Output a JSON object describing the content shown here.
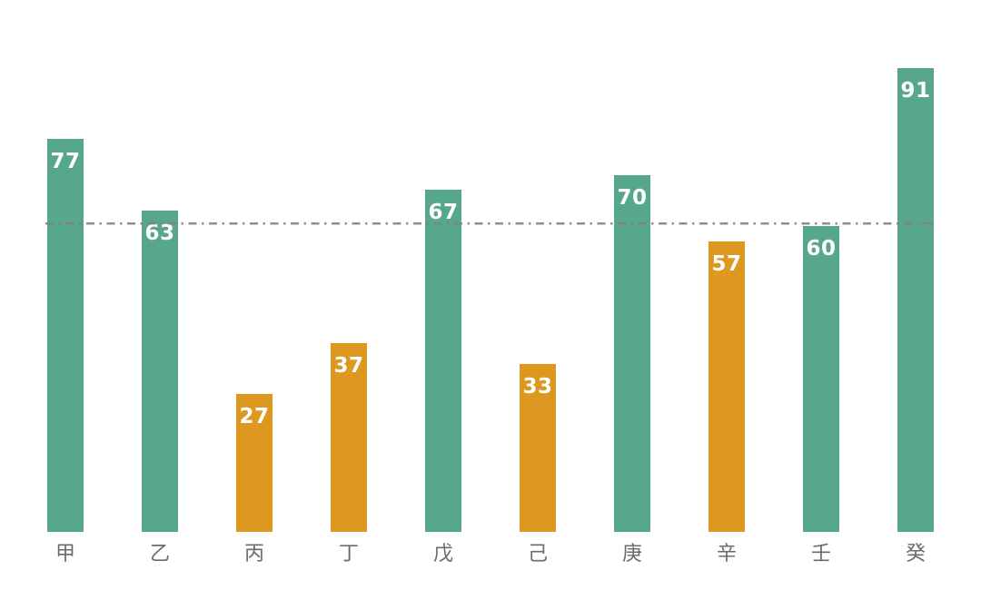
{
  "page": {
    "background": "#ffffff"
  },
  "chart_data": {
    "type": "bar",
    "title": "",
    "xlabel": "",
    "ylabel": "",
    "categories": [
      "甲",
      "乙",
      "丙",
      "丁",
      "戊",
      "己",
      "庚",
      "辛",
      "壬",
      "癸"
    ],
    "values": [
      77,
      63,
      27,
      37,
      67,
      33,
      70,
      57,
      60,
      91
    ],
    "bar_color_keys": [
      "teal",
      "teal",
      "orange",
      "orange",
      "teal",
      "orange",
      "teal",
      "orange",
      "teal",
      "teal"
    ],
    "palette": {
      "teal": "#57A68E",
      "orange": "#DD981F"
    },
    "value_labels": "inside-top",
    "value_label_color": "#ffffff",
    "category_label_color": "#6b6b6b",
    "ylim": [
      0,
      100
    ],
    "grid": false,
    "legend": false,
    "reference_line": {
      "value": 60,
      "style": "dash-dot",
      "color": "#878080",
      "opacity": 0.9
    }
  }
}
